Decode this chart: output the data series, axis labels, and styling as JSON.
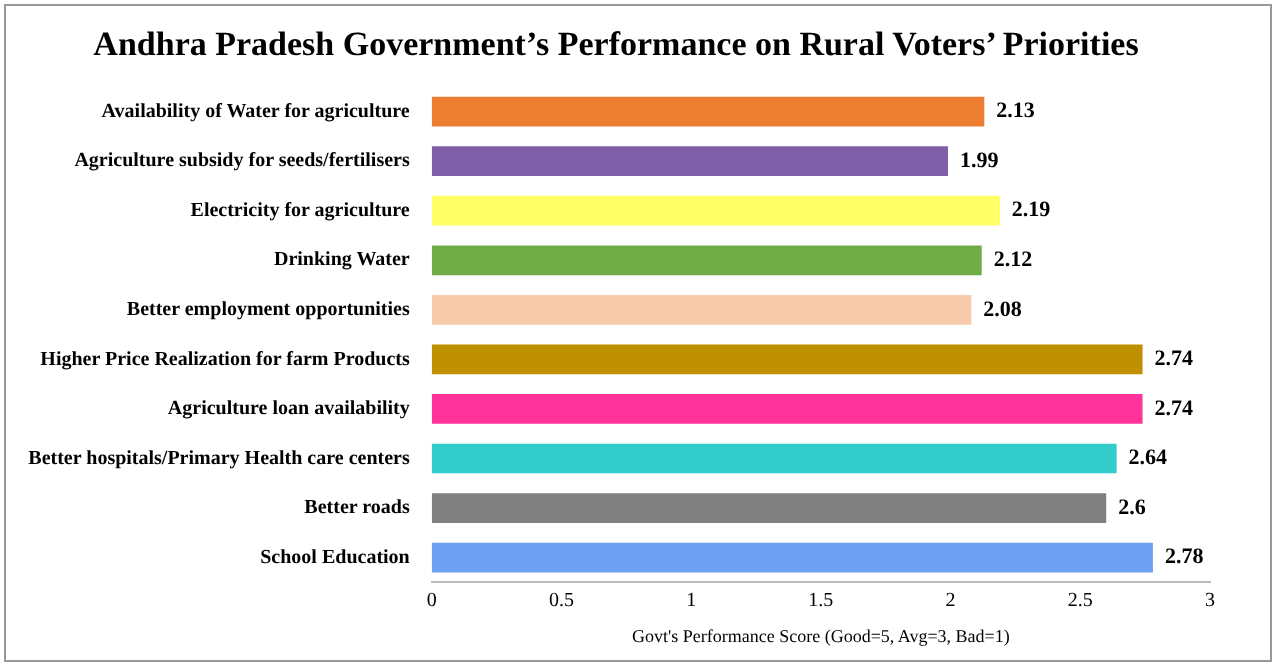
{
  "chart_data": {
    "type": "bar",
    "orientation": "horizontal",
    "title": "Andhra Pradesh Government’s Performance on Rural Voters’ Priorities",
    "xlabel": "Govt's Performance Score (Good=5, Avg=3, Bad=1)",
    "categories": [
      "Availability of Water for agriculture",
      "Agriculture subsidy for seeds/fertilisers",
      "Electricity for agriculture",
      "Drinking Water",
      "Better employment opportunities",
      "Higher Price Realization for farm Products",
      "Agriculture loan availability",
      "Better hospitals/Primary Health care centers",
      "Better roads",
      "School Education"
    ],
    "values": [
      2.13,
      1.99,
      2.19,
      2.12,
      2.08,
      2.74,
      2.74,
      2.64,
      2.6,
      2.78
    ],
    "colors": [
      "#ed7d31",
      "#7f5fa8",
      "#ffff66",
      "#70ad47",
      "#f8cbad",
      "#bf9000",
      "#ff3399",
      "#33cccc",
      "#808080",
      "#6fa1f2"
    ],
    "xlim": [
      0,
      3
    ],
    "xticks": [
      0,
      0.5,
      1,
      1.5,
      2,
      2.5,
      3
    ],
    "grid": false,
    "legend": false,
    "data_labels": true
  }
}
